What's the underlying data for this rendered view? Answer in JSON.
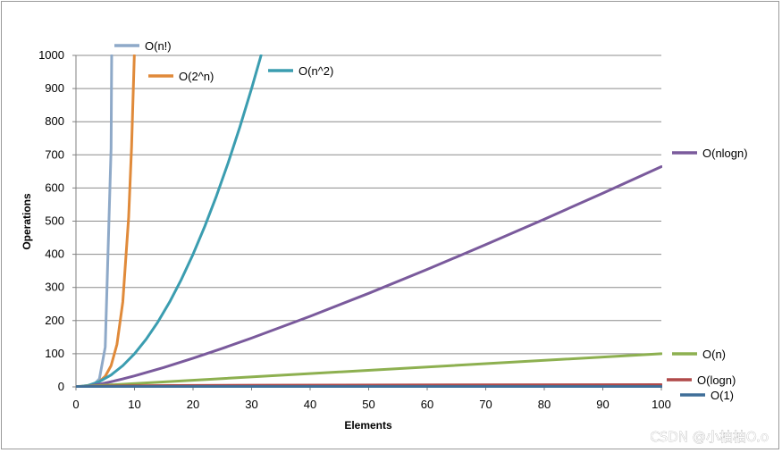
{
  "chart_data": {
    "type": "line",
    "title": "",
    "xlabel": "Elements",
    "ylabel": "Operations",
    "xlim": [
      0,
      100
    ],
    "ylim": [
      0,
      1000
    ],
    "xticks": [
      0,
      10,
      20,
      30,
      40,
      50,
      60,
      70,
      80,
      90,
      100
    ],
    "yticks": [
      0,
      100,
      200,
      300,
      400,
      500,
      600,
      700,
      800,
      900,
      1000
    ],
    "grid": "horizontal",
    "x": [
      0,
      1,
      2,
      3,
      4,
      5,
      6,
      7,
      8,
      9,
      10,
      15,
      20,
      25,
      30,
      32,
      40,
      50,
      60,
      70,
      80,
      90,
      100
    ],
    "series": [
      {
        "name": "O(n!)",
        "color": "#8EA9C8",
        "points": [
          [
            0,
            0
          ],
          [
            1,
            1
          ],
          [
            2,
            2
          ],
          [
            3,
            6
          ],
          [
            4,
            24
          ],
          [
            5,
            120
          ],
          [
            5.8,
            600
          ],
          [
            6,
            720
          ],
          [
            6.1,
            1000
          ]
        ]
      },
      {
        "name": "O(2^n)",
        "color": "#E08A3A",
        "points": [
          [
            0,
            1
          ],
          [
            1,
            2
          ],
          [
            2,
            4
          ],
          [
            3,
            8
          ],
          [
            4,
            16
          ],
          [
            5,
            32
          ],
          [
            6,
            64
          ],
          [
            7,
            128
          ],
          [
            8,
            256
          ],
          [
            9,
            512
          ],
          [
            9.5,
            724
          ],
          [
            9.97,
            1000
          ]
        ]
      },
      {
        "name": "O(n^2)",
        "color": "#3B9DB0",
        "points": [
          [
            0,
            0
          ],
          [
            2,
            4
          ],
          [
            4,
            16
          ],
          [
            6,
            36
          ],
          [
            8,
            64
          ],
          [
            10,
            100
          ],
          [
            12,
            144
          ],
          [
            14,
            196
          ],
          [
            16,
            256
          ],
          [
            18,
            324
          ],
          [
            20,
            400
          ],
          [
            22,
            484
          ],
          [
            24,
            576
          ],
          [
            26,
            676
          ],
          [
            28,
            784
          ],
          [
            30,
            900
          ],
          [
            31.62,
            1000
          ]
        ]
      },
      {
        "name": "O(nlogn)",
        "color": "#7A5A9C",
        "points": [
          [
            1,
            0
          ],
          [
            2,
            2
          ],
          [
            4,
            8
          ],
          [
            6,
            15.5
          ],
          [
            8,
            24
          ],
          [
            10,
            33.2
          ],
          [
            15,
            58.6
          ],
          [
            20,
            86.4
          ],
          [
            25,
            116.1
          ],
          [
            30,
            147.2
          ],
          [
            40,
            212.9
          ],
          [
            50,
            282.2
          ],
          [
            60,
            354.4
          ],
          [
            70,
            429.1
          ],
          [
            80,
            505.8
          ],
          [
            90,
            584.3
          ],
          [
            100,
            664.4
          ]
        ]
      },
      {
        "name": "O(n)",
        "color": "#8DB050",
        "points": [
          [
            0,
            0
          ],
          [
            100,
            100
          ]
        ]
      },
      {
        "name": "O(logn)",
        "color": "#B04A4A",
        "points": [
          [
            1,
            0
          ],
          [
            2,
            1
          ],
          [
            4,
            2
          ],
          [
            8,
            3
          ],
          [
            16,
            4
          ],
          [
            32,
            5
          ],
          [
            64,
            6
          ],
          [
            100,
            6.64
          ]
        ]
      },
      {
        "name": "O(1)",
        "color": "#3F6E98",
        "points": [
          [
            0,
            1
          ],
          [
            100,
            1
          ]
        ]
      }
    ]
  },
  "watermark": "CSDN @小柚柚O.o"
}
